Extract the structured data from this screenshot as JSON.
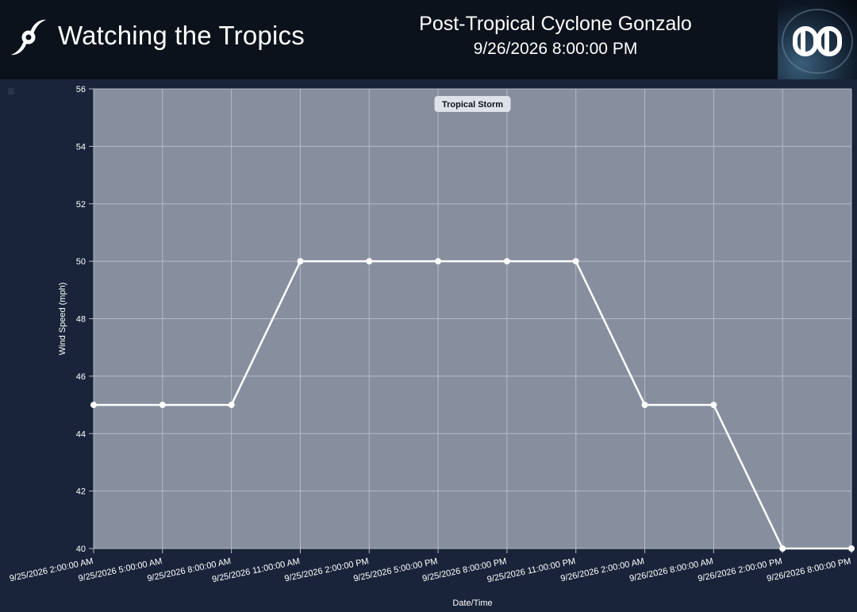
{
  "header": {
    "brand_title": "Watching the Tropics",
    "storm_name": "Post-Tropical Cyclone Gonzalo",
    "storm_time": "9/26/2026 8:00:00 PM",
    "brand_icon": "hurricane-icon",
    "logo_icon": "dd-logo-icon"
  },
  "colors": {
    "header_bg": "#0b121b",
    "page_bg": "#19243a",
    "plot_bg": "#878f9f",
    "line": "#ffffff",
    "grid": "#b4bac5"
  },
  "chart_data": {
    "type": "line",
    "xlabel": "Date/Time",
    "ylabel": "Wind Speed (mph)",
    "ylim": [
      40,
      56
    ],
    "yticks": [
      40,
      42,
      44,
      46,
      48,
      50,
      52,
      54,
      56
    ],
    "grid": true,
    "annotations": [
      "Tropical Storm"
    ],
    "categories": [
      "9/25/2026 2:00:00 AM",
      "9/25/2026 5:00:00 AM",
      "9/25/2026 8:00:00 AM",
      "9/25/2026 11:00:00 AM",
      "9/25/2026 2:00:00 PM",
      "9/25/2026 5:00:00 PM",
      "9/25/2026 8:00:00 PM",
      "9/25/2026 11:00:00 PM",
      "9/26/2026 2:00:00 AM",
      "9/26/2026 8:00:00 AM",
      "9/26/2026 2:00:00 PM",
      "9/26/2026 8:00:00 PM"
    ],
    "values": [
      45,
      45,
      45,
      50,
      50,
      50,
      50,
      50,
      45,
      45,
      40,
      40
    ]
  }
}
